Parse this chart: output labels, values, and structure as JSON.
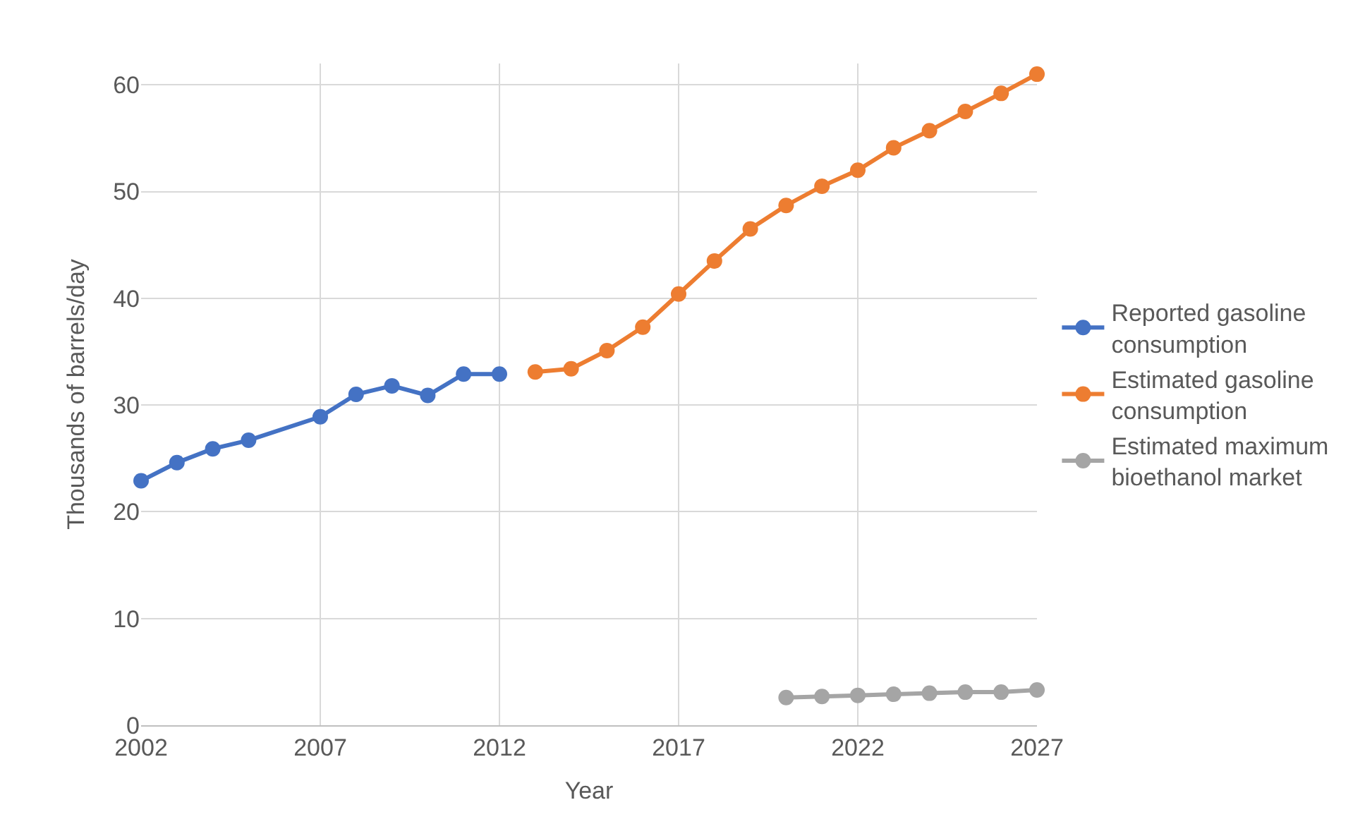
{
  "chart_data": {
    "type": "line",
    "xlabel": "Year",
    "ylabel": "Thousands of barrels/day",
    "xlim": [
      2002,
      2027
    ],
    "xticks": [
      2002,
      2007,
      2012,
      2017,
      2022,
      2027
    ],
    "ylim": [
      0,
      62
    ],
    "yticks": [
      0,
      10,
      20,
      30,
      40,
      50,
      60
    ],
    "grid": true,
    "legend": "right",
    "marker": "circle",
    "line_style": "solid",
    "series": [
      {
        "name": "Reported gasoline consumption",
        "color": "#4472c4",
        "x": [
          2002,
          2003,
          2004,
          2005,
          2007,
          2008,
          2009,
          2010,
          2011,
          2012
        ],
        "values": [
          22.9,
          24.6,
          25.9,
          26.7,
          28.9,
          31.0,
          31.8,
          30.9,
          32.9,
          32.9
        ]
      },
      {
        "name": "Estimated gasoline consumption",
        "color": "#ed7d31",
        "x": [
          2013,
          2014,
          2015,
          2016,
          2017,
          2018,
          2019,
          2020,
          2021,
          2022,
          2023,
          2024,
          2025,
          2026,
          2027
        ],
        "values": [
          33.1,
          33.4,
          35.1,
          37.3,
          40.4,
          43.5,
          46.5,
          48.7,
          50.5,
          52.0,
          54.1,
          55.7,
          57.5,
          59.2,
          61.0
        ]
      },
      {
        "name": "Estimated maximum bioethanol market",
        "color": "#a5a5a5",
        "x": [
          2020,
          2021,
          2022,
          2023,
          2024,
          2025,
          2026,
          2027
        ],
        "values": [
          2.6,
          2.7,
          2.8,
          2.9,
          3.0,
          3.1,
          3.1,
          3.3
        ]
      }
    ]
  }
}
